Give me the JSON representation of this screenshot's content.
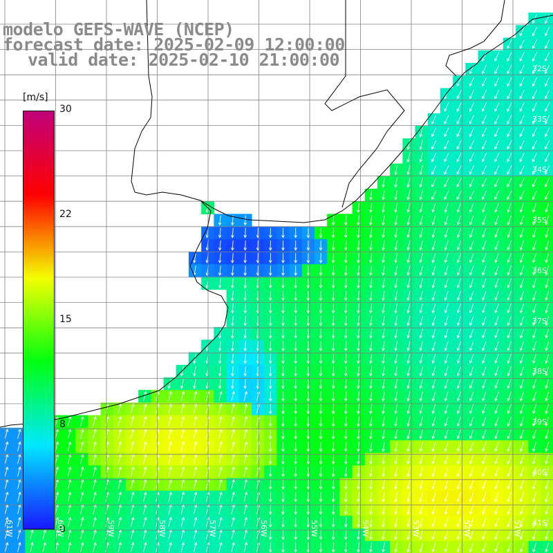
{
  "title": {
    "line1": "modelo GEFS-WAVE (NCEP)",
    "line2": "forecast date: 2025-02-09 12:00:00",
    "line3": "valid date: 2025-02-10 21:00:00"
  },
  "colorbar": {
    "unit": "[m/s]",
    "ticks": [
      "30",
      "22",
      "15",
      "8",
      "0"
    ],
    "colors": [
      "#1818ff",
      "#00e8ff",
      "#00ff10",
      "#f4ff00",
      "#ff0000",
      "#c0007a"
    ]
  },
  "axes": {
    "lat_labels": [
      "32S",
      "33S",
      "34S",
      "35S",
      "36S",
      "37S",
      "38S",
      "39S",
      "40S",
      "41S"
    ],
    "lon_labels": [
      "61W",
      "60W",
      "59W",
      "58W",
      "57W",
      "56W",
      "55W",
      "54W",
      "53W",
      "52W",
      "51W"
    ]
  },
  "field": {
    "variable": "wind speed",
    "arrow_color": "#ffffff",
    "land_color": "#ffffff",
    "grid_color": "#808080"
  }
}
